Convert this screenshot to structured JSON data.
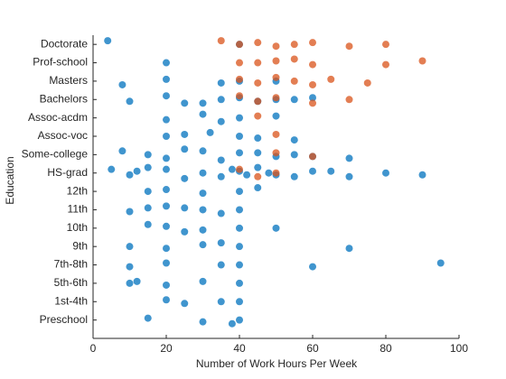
{
  "chart_data": {
    "type": "scatter",
    "xlabel": "Number of Work Hours Per Week",
    "ylabel": "Education",
    "xlim": [
      0,
      100
    ],
    "xticks": [
      0,
      20,
      40,
      60,
      80,
      100
    ],
    "ylim": [
      0,
      16.5
    ],
    "yticks": [
      {
        "value": 1,
        "label": "Preschool"
      },
      {
        "value": 2,
        "label": "1st-4th"
      },
      {
        "value": 3,
        "label": "5th-6th"
      },
      {
        "value": 4,
        "label": "7th-8th"
      },
      {
        "value": 5,
        "label": "9th"
      },
      {
        "value": 6,
        "label": "10th"
      },
      {
        "value": 7,
        "label": "11th"
      },
      {
        "value": 8,
        "label": "12th"
      },
      {
        "value": 9,
        "label": "HS-grad"
      },
      {
        "value": 10,
        "label": "Some-college"
      },
      {
        "value": 11,
        "label": "Assoc-voc"
      },
      {
        "value": 12,
        "label": "Assoc-acdm"
      },
      {
        "value": 13,
        "label": "Bachelors"
      },
      {
        "value": 14,
        "label": "Masters"
      },
      {
        "value": 15,
        "label": "Prof-school"
      },
      {
        "value": 16,
        "label": "Doctorate"
      }
    ],
    "series": [
      {
        "color": "#0072bd",
        "x": [
          40,
          35,
          45,
          50,
          20,
          25,
          30,
          60,
          10,
          15,
          55,
          38,
          42,
          48,
          65,
          70,
          5,
          80,
          90,
          12,
          40,
          20,
          30,
          50,
          15,
          25,
          35,
          45,
          60,
          8,
          55,
          70,
          40,
          45,
          50,
          30,
          20,
          35,
          10,
          60,
          25,
          55,
          40,
          35,
          20,
          50,
          8,
          40,
          30,
          20,
          50,
          35,
          40,
          45,
          25,
          32,
          55,
          20,
          40,
          20,
          30,
          15,
          45,
          40,
          20,
          10,
          25,
          35,
          30,
          15,
          40,
          20,
          30,
          15,
          50,
          25,
          40,
          30,
          20,
          10,
          35,
          70,
          40,
          20,
          10,
          35,
          60,
          95,
          40,
          30,
          20,
          10,
          12,
          40,
          20,
          25,
          35,
          40,
          15,
          30,
          38,
          4,
          40,
          20
        ],
        "y": [
          9.1,
          8.8,
          9.3,
          8.9,
          9.2,
          8.7,
          9.0,
          9.1,
          8.9,
          9.3,
          8.8,
          9.2,
          8.9,
          9.0,
          9.1,
          8.8,
          9.2,
          9.0,
          8.9,
          9.1,
          10.1,
          9.8,
          10.2,
          9.9,
          10.0,
          10.3,
          9.7,
          10.1,
          9.9,
          10.2,
          10.0,
          9.8,
          13.1,
          12.9,
          13.0,
          12.8,
          13.2,
          13.0,
          12.9,
          13.1,
          12.8,
          13.0,
          14.0,
          13.9,
          14.1,
          14.0,
          13.8,
          12.0,
          12.2,
          11.9,
          12.1,
          11.8,
          11.0,
          10.9,
          11.1,
          11.2,
          10.8,
          11.0,
          8.0,
          8.1,
          7.9,
          8.0,
          8.2,
          7.0,
          7.2,
          6.9,
          7.1,
          6.8,
          7.0,
          7.1,
          6.0,
          6.1,
          5.9,
          6.2,
          6.0,
          5.8,
          5.0,
          5.1,
          4.9,
          5.0,
          5.2,
          4.9,
          4.0,
          4.1,
          3.9,
          4.0,
          3.9,
          4.1,
          3.0,
          3.1,
          2.9,
          3.0,
          3.1,
          2.0,
          2.1,
          1.9,
          2.0,
          1.0,
          1.1,
          0.9,
          0.8,
          16.2,
          16.0,
          15.0
        ]
      },
      {
        "color": "#d95319",
        "x": [
          40,
          45,
          50,
          55,
          60,
          35,
          70,
          80,
          40,
          50,
          60,
          45,
          55,
          80,
          90,
          40,
          45,
          50,
          55,
          60,
          65,
          75,
          40,
          45,
          50,
          60,
          70,
          40,
          50,
          45,
          50,
          60,
          45,
          50
        ],
        "y": [
          16.0,
          16.1,
          15.9,
          16.0,
          16.1,
          16.2,
          15.9,
          16.0,
          15.0,
          15.1,
          14.9,
          15.0,
          15.2,
          14.9,
          15.1,
          14.1,
          13.9,
          14.2,
          14.0,
          13.8,
          14.1,
          13.9,
          13.2,
          12.9,
          13.1,
          12.8,
          13.0,
          9.2,
          9.0,
          8.8,
          10.1,
          9.9,
          12.1,
          11.1
        ]
      }
    ]
  }
}
